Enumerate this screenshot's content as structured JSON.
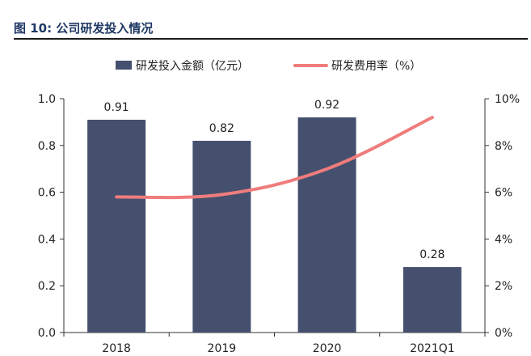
{
  "figure_title": "图 10:  公司研发投入情况",
  "chart_data": {
    "type": "bar",
    "categories": [
      "2018",
      "2019",
      "2020",
      "2021Q1"
    ],
    "series": [
      {
        "name": "研发投入金额（亿元）",
        "type": "bar",
        "axis": "left",
        "values": [
          0.91,
          0.82,
          0.92,
          0.28
        ],
        "data_labels": [
          "0.91",
          "0.82",
          "0.92",
          "0.28"
        ],
        "color": "#44506e"
      },
      {
        "name": "研发费用率（%）",
        "type": "line",
        "axis": "right",
        "values": [
          5.8,
          5.9,
          7.0,
          9.2
        ],
        "color": "#f07c7c"
      }
    ],
    "left_axis": {
      "ylim": [
        0,
        1.0
      ],
      "ticks": [
        "0.0",
        "0.2",
        "0.4",
        "0.6",
        "0.8",
        "1.0"
      ]
    },
    "right_axis": {
      "ylim": [
        0,
        10
      ],
      "ticks": [
        "0%",
        "2%",
        "4%",
        "6%",
        "8%",
        "10%"
      ]
    },
    "legend_position": "top-center",
    "grid": false
  }
}
